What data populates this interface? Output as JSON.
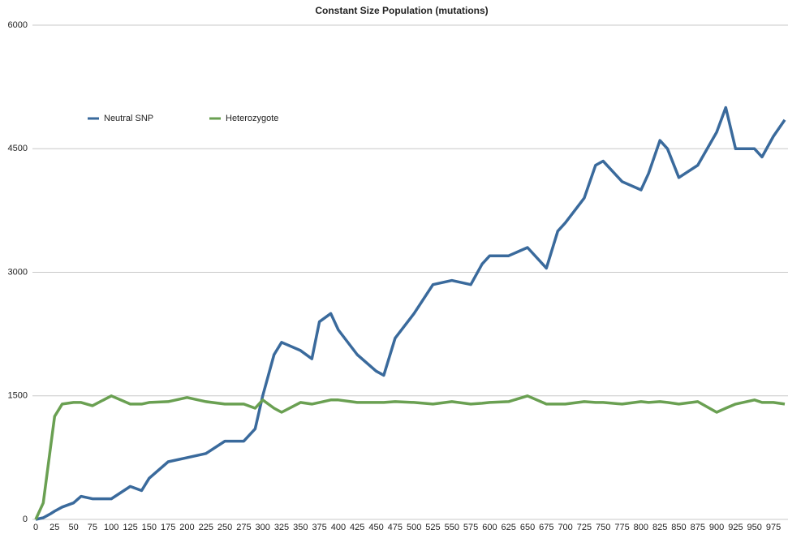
{
  "chart_data": {
    "type": "line",
    "title": "Constant Size Population (mutations)",
    "x": [
      0,
      10,
      20,
      25,
      35,
      50,
      60,
      75,
      100,
      125,
      140,
      150,
      175,
      200,
      225,
      250,
      275,
      290,
      300,
      315,
      325,
      350,
      365,
      375,
      390,
      400,
      425,
      450,
      460,
      475,
      500,
      525,
      550,
      575,
      590,
      600,
      625,
      650,
      675,
      690,
      700,
      725,
      740,
      750,
      775,
      800,
      810,
      825,
      835,
      850,
      875,
      900,
      912,
      925,
      950,
      960,
      975,
      990
    ],
    "series": [
      {
        "name": "Neutral SNP",
        "color": "#3a6a9c",
        "values": [
          0,
          20,
          70,
          100,
          150,
          200,
          280,
          250,
          250,
          400,
          350,
          500,
          700,
          750,
          800,
          950,
          950,
          1100,
          1500,
          2000,
          2150,
          2050,
          1950,
          2400,
          2500,
          2300,
          2000,
          1800,
          1750,
          2200,
          2500,
          2850,
          2900,
          2850,
          3100,
          3200,
          3200,
          3300,
          3050,
          3500,
          3600,
          3900,
          4300,
          4350,
          4100,
          4000,
          4200,
          4600,
          4500,
          4150,
          4300,
          4700,
          5000,
          4500,
          4500,
          4400,
          4650,
          4850
        ]
      },
      {
        "name": "Heterozygote",
        "color": "#6aa052",
        "values": [
          0,
          200,
          900,
          1250,
          1400,
          1420,
          1420,
          1380,
          1500,
          1400,
          1400,
          1420,
          1430,
          1480,
          1430,
          1400,
          1400,
          1350,
          1450,
          1350,
          1300,
          1420,
          1400,
          1420,
          1450,
          1450,
          1420,
          1420,
          1420,
          1430,
          1420,
          1400,
          1430,
          1400,
          1410,
          1420,
          1430,
          1500,
          1400,
          1400,
          1400,
          1430,
          1420,
          1420,
          1400,
          1430,
          1420,
          1430,
          1420,
          1400,
          1430,
          1300,
          1350,
          1400,
          1450,
          1420,
          1420,
          1400
        ]
      }
    ],
    "xlim": [
      0,
      990
    ],
    "xticks": [
      0,
      25,
      50,
      75,
      100,
      125,
      150,
      175,
      200,
      225,
      250,
      275,
      300,
      325,
      350,
      375,
      400,
      425,
      450,
      475,
      500,
      525,
      550,
      575,
      600,
      625,
      650,
      675,
      700,
      725,
      750,
      775,
      800,
      825,
      850,
      875,
      900,
      925,
      950,
      975
    ],
    "ylim": [
      0,
      6000
    ],
    "yticks": [
      0,
      1500,
      3000,
      4500,
      6000
    ],
    "grid": true
  }
}
